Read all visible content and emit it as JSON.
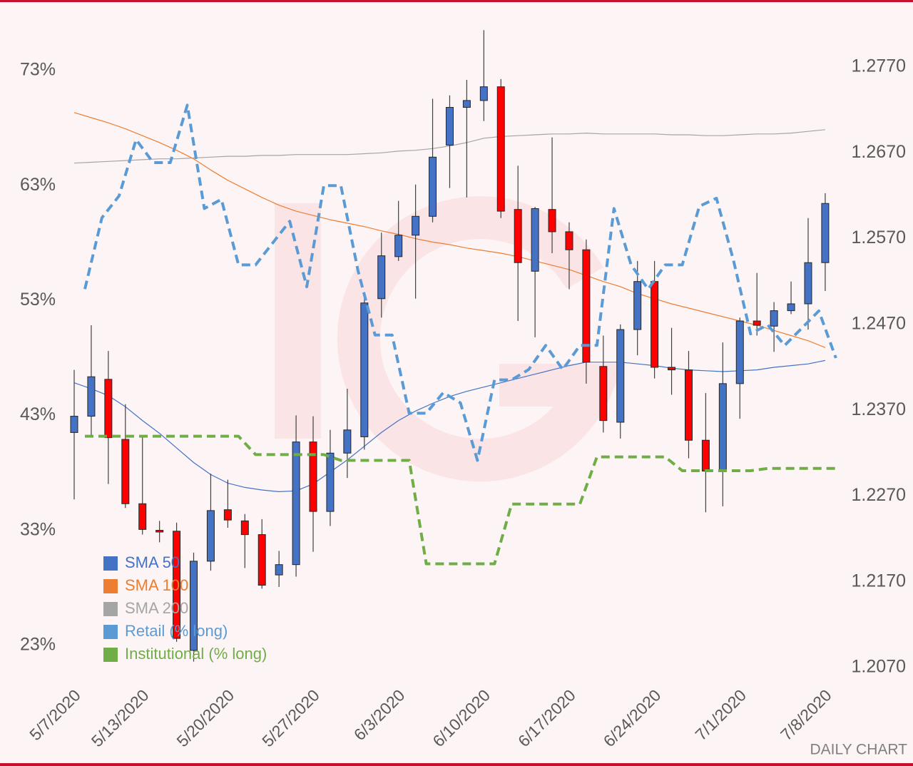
{
  "chart_data": {
    "type": "candlestick",
    "annotation": "DAILY CHART",
    "categories": [
      "5/7/2020",
      null,
      null,
      null,
      "5/13/2020",
      null,
      null,
      null,
      null,
      "5/20/2020",
      null,
      null,
      null,
      null,
      "5/27/2020",
      null,
      null,
      null,
      null,
      "6/3/2020",
      null,
      null,
      null,
      null,
      "6/10/2020",
      null,
      null,
      null,
      null,
      "6/17/2020",
      null,
      null,
      null,
      null,
      "6/24/2020",
      null,
      null,
      null,
      null,
      "7/1/2020",
      null,
      null,
      null,
      null,
      "7/8/2020"
    ],
    "candles": {
      "axis": "y2",
      "up_color": "#4472c4",
      "down_color": "#ff0000",
      "open": [
        1.2344,
        1.2363,
        1.2406,
        1.2336,
        1.2261,
        1.223,
        1.2229,
        1.209,
        1.2194,
        1.2254,
        1.2241,
        1.2225,
        1.2178,
        1.219,
        1.2333,
        1.2252,
        1.232,
        1.2339,
        1.25,
        1.2549,
        1.2574,
        1.2596,
        1.2679,
        1.2723,
        1.2731,
        1.2747,
        1.2604,
        1.2532,
        1.2604,
        1.2578,
        1.2557,
        1.2421,
        1.2356,
        1.2464,
        1.252,
        1.242,
        1.2417,
        1.2335,
        1.2299,
        1.2401,
        1.2474,
        1.2468,
        1.2486,
        1.2494,
        1.2542
      ],
      "high": [
        1.2417,
        1.2469,
        1.2439,
        1.2377,
        1.2339,
        1.2241,
        1.2239,
        1.2204,
        1.2296,
        1.2289,
        1.2249,
        1.2243,
        1.2206,
        1.2364,
        1.2363,
        1.2347,
        1.2395,
        1.2507,
        1.2577,
        1.2614,
        1.2633,
        1.2733,
        1.2737,
        1.2755,
        1.2813,
        1.2756,
        1.2655,
        1.2607,
        1.2688,
        1.2589,
        1.2569,
        1.2457,
        1.247,
        1.2544,
        1.2544,
        1.2466,
        1.2439,
        1.239,
        1.2449,
        1.2478,
        1.253,
        1.2496,
        1.252,
        1.2594,
        1.2623
      ],
      "low": [
        1.2266,
        1.2341,
        1.2284,
        1.2256,
        1.2225,
        1.2216,
        1.21,
        1.2077,
        1.2183,
        1.2233,
        1.2186,
        1.2162,
        1.2164,
        1.2176,
        1.2205,
        1.2235,
        1.2291,
        1.2324,
        1.2478,
        1.2544,
        1.25,
        1.2589,
        1.2629,
        1.2618,
        1.2707,
        1.2594,
        1.2474,
        1.2455,
        1.2553,
        1.2511,
        1.2401,
        1.2344,
        1.2337,
        1.2434,
        1.2407,
        1.2388,
        1.2314,
        1.2251,
        1.2258,
        1.236,
        1.2457,
        1.2438,
        1.2482,
        1.2464,
        1.2509
      ],
      "close": [
        1.2363,
        1.2409,
        1.2338,
        1.2261,
        1.2231,
        1.2228,
        1.2104,
        1.2194,
        1.2253,
        1.2242,
        1.2225,
        1.2166,
        1.219,
        1.2333,
        1.2252,
        1.232,
        1.2347,
        1.2495,
        1.255,
        1.2574,
        1.2596,
        1.2665,
        1.2723,
        1.2731,
        1.2747,
        1.2602,
        1.2542,
        1.2605,
        1.2578,
        1.2557,
        1.2426,
        1.2358,
        1.2464,
        1.252,
        1.242,
        1.2417,
        1.2335,
        1.2299,
        1.2401,
        1.2474,
        1.2469,
        1.2486,
        1.2494,
        1.2542,
        1.2611
      ]
    },
    "series": [
      {
        "name": "SMA 50",
        "color": "#4472c4",
        "axis": "y2",
        "line_style": "solid",
        "values": [
          1.2402,
          1.2395,
          1.2387,
          1.2374,
          1.2358,
          1.2343,
          1.2326,
          1.2309,
          1.2295,
          1.2285,
          1.228,
          1.2277,
          1.2275,
          1.2276,
          1.2284,
          1.2298,
          1.2312,
          1.2328,
          1.2344,
          1.2358,
          1.2369,
          1.2378,
          1.2386,
          1.2392,
          1.2397,
          1.2402,
          1.2407,
          1.2412,
          1.2417,
          1.2422,
          1.2426,
          1.2426,
          1.2426,
          1.2424,
          1.2422,
          1.2419,
          1.2417,
          1.2416,
          1.2415,
          1.2416,
          1.2417,
          1.242,
          1.2422,
          1.2424,
          1.2428
        ]
      },
      {
        "name": "SMA 100",
        "color": "#ed7d31",
        "axis": "y2",
        "line_style": "solid",
        "values": [
          1.2717,
          1.2711,
          1.2705,
          1.2698,
          1.269,
          1.2682,
          1.2673,
          1.2663,
          1.265,
          1.2638,
          1.2628,
          1.2618,
          1.2609,
          1.2602,
          1.2597,
          1.2592,
          1.2588,
          1.2584,
          1.2579,
          1.2575,
          1.257,
          1.2566,
          1.2563,
          1.2559,
          1.2556,
          1.2553,
          1.2549,
          1.2544,
          1.2539,
          1.2534,
          1.2527,
          1.252,
          1.2514,
          1.2506,
          1.25,
          1.2494,
          1.2489,
          1.2484,
          1.2479,
          1.2474,
          1.2469,
          1.2463,
          1.2457,
          1.2451,
          1.2443
        ]
      },
      {
        "name": "SMA 200",
        "color": "#a5a5a5",
        "axis": "y2",
        "line_style": "solid",
        "values": [
          1.2658,
          1.2659,
          1.266,
          1.2661,
          1.2662,
          1.2663,
          1.2663,
          1.2664,
          1.2665,
          1.2666,
          1.2666,
          1.2667,
          1.2667,
          1.2668,
          1.2668,
          1.2668,
          1.2668,
          1.2669,
          1.267,
          1.2672,
          1.2673,
          1.2675,
          1.2678,
          1.2682,
          1.2687,
          1.2689,
          1.269,
          1.2691,
          1.2692,
          1.2692,
          1.2693,
          1.2692,
          1.2692,
          1.2692,
          1.2692,
          1.2691,
          1.2691,
          1.269,
          1.269,
          1.2691,
          1.2692,
          1.2692,
          1.2693,
          1.2695,
          1.2697
        ]
      },
      {
        "name": "Retail (% long)",
        "color": "#5b9bd5",
        "axis": "y",
        "line_style": "dashed",
        "values": [
          54.0,
          60.2,
          62.1,
          67.0,
          65.0,
          65.0,
          70.0,
          61.0,
          61.8,
          56.1,
          56.1,
          58.0,
          59.9,
          54.2,
          63.0,
          63.0,
          55.6,
          50.0,
          50.0,
          43.2,
          43.2,
          45.0,
          44.1,
          39.1,
          46.1,
          46.1,
          47.0,
          49.1,
          47.0,
          49.1,
          49.1,
          61.0,
          56.1,
          54.0,
          56.1,
          56.1,
          61.2,
          61.9,
          56.5,
          50.1,
          50.9,
          49.1,
          50.6,
          52.1,
          48.0
        ]
      },
      {
        "name": "Institutional (% long)",
        "color": "#70ad47",
        "axis": "y",
        "line_style": "dashed",
        "values": [
          41.2,
          41.2,
          41.2,
          41.2,
          41.2,
          41.2,
          41.2,
          41.2,
          41.2,
          41.2,
          39.6,
          39.6,
          39.6,
          39.6,
          39.6,
          39.1,
          39.1,
          39.1,
          39.1,
          39.1,
          30.1,
          30.1,
          30.1,
          30.1,
          30.1,
          35.3,
          35.3,
          35.3,
          35.3,
          35.3,
          39.4,
          39.4,
          39.4,
          39.4,
          39.4,
          38.2,
          38.2,
          38.2,
          38.2,
          38.2,
          38.4,
          38.4,
          38.4,
          38.4,
          38.4
        ]
      }
    ],
    "ylim": [
      23,
      73
    ],
    "yticks": [
      {
        "value": 23,
        "label": "23%"
      },
      {
        "value": 33,
        "label": "33%"
      },
      {
        "value": 43,
        "label": "43%"
      },
      {
        "value": 53,
        "label": "53%"
      },
      {
        "value": 63,
        "label": "63%"
      },
      {
        "value": 73,
        "label": "73%"
      }
    ],
    "y2lim": [
      1.207,
      1.277
    ],
    "y2ticks": [
      {
        "value": 1.207,
        "label": "1.2070"
      },
      {
        "value": 1.217,
        "label": "1.2170"
      },
      {
        "value": 1.227,
        "label": "1.2270"
      },
      {
        "value": 1.237,
        "label": "1.2370"
      },
      {
        "value": 1.247,
        "label": "1.2470"
      },
      {
        "value": 1.257,
        "label": "1.2570"
      },
      {
        "value": 1.267,
        "label": "1.2670"
      },
      {
        "value": 1.277,
        "label": "1.2770"
      }
    ],
    "legend": "bottom-left"
  }
}
